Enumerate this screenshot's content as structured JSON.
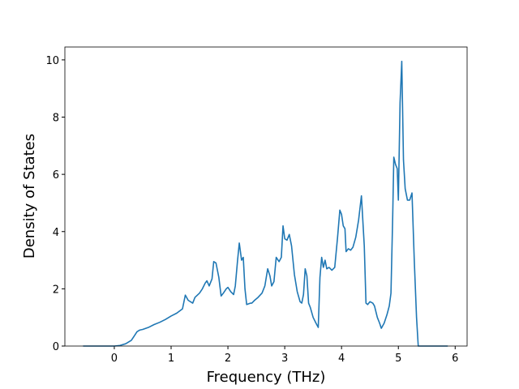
{
  "chart_data": {
    "type": "line",
    "xlabel": "Frequency (THz)",
    "ylabel": "Density of States",
    "x": [
      -0.55,
      0,
      0.1,
      0.2,
      0.3,
      0.35,
      0.4,
      0.45,
      0.5,
      0.6,
      0.7,
      0.8,
      0.9,
      1.0,
      1.1,
      1.2,
      1.25,
      1.3,
      1.38,
      1.42,
      1.5,
      1.55,
      1.6,
      1.63,
      1.67,
      1.72,
      1.75,
      1.79,
      1.84,
      1.88,
      1.92,
      1.97,
      2.0,
      2.05,
      2.1,
      2.13,
      2.17,
      2.2,
      2.24,
      2.27,
      2.3,
      2.33,
      2.4,
      2.42,
      2.47,
      2.53,
      2.6,
      2.65,
      2.7,
      2.74,
      2.77,
      2.81,
      2.85,
      2.9,
      2.94,
      2.97,
      3.0,
      3.04,
      3.08,
      3.12,
      3.17,
      3.22,
      3.27,
      3.3,
      3.33,
      3.36,
      3.39,
      3.42,
      3.45,
      3.5,
      3.55,
      3.59,
      3.62,
      3.65,
      3.68,
      3.71,
      3.74,
      3.78,
      3.83,
      3.88,
      3.93,
      3.97,
      4.0,
      4.03,
      4.06,
      4.08,
      4.12,
      4.16,
      4.2,
      4.25,
      4.3,
      4.35,
      4.4,
      4.43,
      4.46,
      4.5,
      4.55,
      4.58,
      4.63,
      4.67,
      4.7,
      4.75,
      4.8,
      4.84,
      4.87,
      4.9,
      4.92,
      4.95,
      4.98,
      5.0,
      5.03,
      5.06,
      5.09,
      5.12,
      5.16,
      5.2,
      5.24,
      5.28,
      5.32,
      5.35,
      5.87
    ],
    "values": [
      0,
      0,
      0.02,
      0.08,
      0.2,
      0.35,
      0.5,
      0.56,
      0.58,
      0.65,
      0.75,
      0.83,
      0.93,
      1.05,
      1.15,
      1.3,
      1.78,
      1.6,
      1.5,
      1.7,
      1.85,
      2.0,
      2.2,
      2.28,
      2.1,
      2.35,
      2.95,
      2.9,
      2.4,
      1.75,
      1.85,
      2.0,
      2.05,
      1.9,
      1.8,
      2.1,
      3.0,
      3.6,
      3.0,
      3.1,
      2.0,
      1.45,
      1.5,
      1.5,
      1.6,
      1.7,
      1.85,
      2.1,
      2.7,
      2.45,
      2.1,
      2.25,
      3.1,
      2.95,
      3.1,
      4.2,
      3.75,
      3.7,
      3.9,
      3.5,
      2.5,
      1.9,
      1.55,
      1.5,
      1.8,
      2.7,
      2.45,
      1.5,
      1.35,
      1.0,
      0.8,
      0.65,
      2.4,
      3.1,
      2.75,
      3.0,
      2.7,
      2.75,
      2.65,
      2.75,
      3.8,
      4.75,
      4.6,
      4.2,
      4.1,
      3.3,
      3.4,
      3.35,
      3.45,
      3.8,
      4.4,
      5.25,
      3.5,
      1.5,
      1.45,
      1.55,
      1.5,
      1.4,
      1.0,
      0.8,
      0.62,
      0.8,
      1.1,
      1.4,
      1.85,
      4.5,
      6.6,
      6.35,
      6.2,
      5.1,
      8.5,
      9.95,
      6.5,
      5.5,
      5.1,
      5.1,
      5.35,
      3.0,
      1.0,
      0,
      0
    ],
    "color": "#1f77b4",
    "xlim": [
      -0.87,
      6.21
    ],
    "ylim": [
      0,
      10.45
    ],
    "xticks": [
      0,
      1,
      2,
      3,
      4,
      5,
      6
    ],
    "yticks": [
      0,
      2,
      4,
      6,
      8,
      10
    ]
  }
}
